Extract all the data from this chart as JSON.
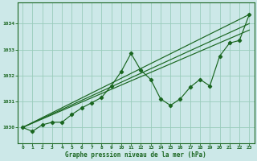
{
  "title": "Graphe pression niveau de la mer (hPa)",
  "bg_color": "#cce8e8",
  "grid_color": "#99ccbb",
  "line_color": "#1a6620",
  "xlim": [
    -0.5,
    23.5
  ],
  "ylim": [
    1029.4,
    1034.8
  ],
  "yticks": [
    1030,
    1031,
    1032,
    1033,
    1034
  ],
  "xticks": [
    0,
    1,
    2,
    3,
    4,
    5,
    6,
    7,
    8,
    9,
    10,
    11,
    12,
    13,
    14,
    15,
    16,
    17,
    18,
    19,
    20,
    21,
    22,
    23
  ],
  "main_series": {
    "x": [
      0,
      1,
      2,
      3,
      4,
      5,
      6,
      7,
      8,
      9,
      10,
      11,
      12,
      13,
      14,
      15,
      16,
      17,
      18,
      19,
      20,
      21,
      22,
      23
    ],
    "y": [
      1030.0,
      1029.85,
      1030.1,
      1030.2,
      1030.2,
      1030.5,
      1030.75,
      1030.95,
      1031.15,
      1031.6,
      1032.15,
      1032.85,
      1032.2,
      1031.85,
      1031.1,
      1030.85,
      1031.1,
      1031.55,
      1031.85,
      1031.6,
      1032.75,
      1033.25,
      1033.35,
      1034.35
    ]
  },
  "straight_lines": [
    {
      "x": [
        0,
        23
      ],
      "y": [
        1030.0,
        1034.35
      ]
    },
    {
      "x": [
        0,
        23
      ],
      "y": [
        1030.0,
        1034.0
      ]
    },
    {
      "x": [
        0,
        23
      ],
      "y": [
        1030.0,
        1033.75
      ]
    }
  ]
}
